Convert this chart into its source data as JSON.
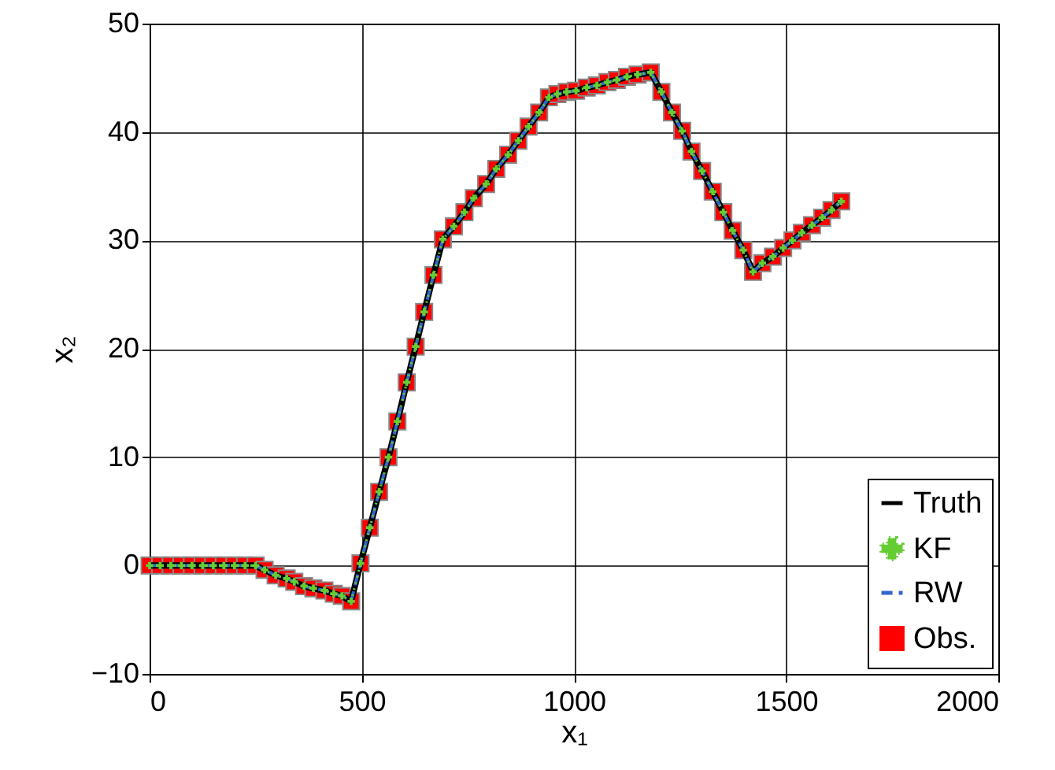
{
  "chart_data": {
    "type": "line",
    "xlabel": "x₁",
    "ylabel": "x₂",
    "x": [
      0,
      25,
      50,
      75,
      100,
      125,
      150,
      175,
      200,
      225,
      250,
      271,
      297,
      323,
      341,
      364,
      386,
      412,
      434,
      453,
      475,
      497,
      519,
      541,
      563,
      584,
      606,
      627,
      647,
      669,
      691,
      717,
      742,
      764,
      793,
      817,
      845,
      869,
      893,
      918,
      941,
      961,
      983,
      1005,
      1030,
      1054,
      1079,
      1101,
      1125,
      1150,
      1181,
      1206,
      1231,
      1255,
      1277,
      1302,
      1327,
      1352,
      1374,
      1399,
      1422,
      1444,
      1469,
      1493,
      1515,
      1537,
      1561,
      1585,
      1607,
      1630
    ],
    "series": [
      {
        "name": "Truth",
        "color": "#000000",
        "line_style": "solid",
        "marker": "none",
        "values": [
          0,
          0,
          0,
          0,
          0,
          0,
          0,
          0,
          0,
          0,
          0,
          -0.4,
          -0.9,
          -1.2,
          -1.5,
          -1.9,
          -2.1,
          -2.3,
          -2.6,
          -2.8,
          -3.3,
          0.2,
          3.5,
          6.8,
          10,
          13.3,
          16.9,
          20.2,
          23.4,
          26.8,
          30.1,
          31.3,
          32.6,
          33.9,
          35.2,
          36.6,
          37.9,
          39.2,
          40.5,
          41.8,
          43.2,
          43.5,
          43.7,
          43.8,
          44.1,
          44.3,
          44.6,
          44.8,
          45.1,
          45.3,
          45.5,
          43.7,
          41.8,
          40.1,
          38.2,
          36.4,
          34.5,
          32.6,
          30.9,
          29.1,
          27.1,
          27.9,
          28.5,
          29.3,
          30,
          30.7,
          31.4,
          32.1,
          32.8,
          33.6
        ]
      },
      {
        "name": "KF",
        "color": "#66cc33",
        "line_style": "dotted",
        "marker": "cross",
        "values": [
          0,
          0,
          0,
          0,
          0,
          0,
          0,
          0,
          0,
          0,
          0,
          -0.4,
          -0.9,
          -1.2,
          -1.5,
          -1.9,
          -2.1,
          -2.3,
          -2.6,
          -2.8,
          -3.3,
          0.2,
          3.5,
          6.8,
          10,
          13.3,
          16.9,
          20.2,
          23.4,
          26.8,
          30.1,
          31.3,
          32.6,
          33.9,
          35.2,
          36.6,
          37.9,
          39.2,
          40.5,
          41.8,
          43.2,
          43.5,
          43.7,
          43.8,
          44.1,
          44.3,
          44.6,
          44.8,
          45.1,
          45.3,
          45.5,
          43.7,
          41.8,
          40.1,
          38.2,
          36.4,
          34.5,
          32.6,
          30.9,
          29.1,
          27.1,
          27.9,
          28.5,
          29.3,
          30,
          30.7,
          31.4,
          32.1,
          32.8,
          33.6
        ]
      },
      {
        "name": "RW",
        "color": "#3366cc",
        "line_style": "dashed",
        "marker": "none",
        "values": [
          0,
          0,
          0,
          0,
          0,
          0,
          0,
          0,
          0,
          0,
          0,
          -0.4,
          -0.9,
          -1.2,
          -1.5,
          -1.9,
          -2.1,
          -2.3,
          -2.6,
          -2.8,
          -3.3,
          0.2,
          3.5,
          6.8,
          10,
          13.3,
          16.9,
          20.2,
          23.4,
          26.8,
          30.1,
          31.3,
          32.6,
          33.9,
          35.2,
          36.6,
          37.9,
          39.2,
          40.5,
          41.8,
          43.2,
          43.5,
          43.7,
          43.8,
          44.1,
          44.3,
          44.6,
          44.8,
          45.1,
          45.3,
          45.5,
          43.7,
          41.8,
          40.1,
          38.2,
          36.4,
          34.5,
          32.6,
          30.9,
          29.1,
          27.1,
          27.9,
          28.5,
          29.3,
          30,
          30.7,
          31.4,
          32.1,
          32.8,
          33.6
        ]
      },
      {
        "name": "Obs.",
        "type": "scatter",
        "color": "#ff0000",
        "marker": "square",
        "values": [
          0,
          0,
          0,
          0,
          0,
          0,
          0,
          0,
          0,
          0,
          0,
          -0.4,
          -0.9,
          -1.2,
          -1.5,
          -1.9,
          -2.1,
          -2.3,
          -2.6,
          -2.8,
          -3.3,
          0.2,
          3.5,
          6.8,
          10,
          13.3,
          16.9,
          20.2,
          23.4,
          26.8,
          30.1,
          31.3,
          32.6,
          33.9,
          35.2,
          36.6,
          37.9,
          39.2,
          40.5,
          41.8,
          43.2,
          43.5,
          43.7,
          43.8,
          44.1,
          44.3,
          44.6,
          44.8,
          45.1,
          45.3,
          45.5,
          43.7,
          41.8,
          40.1,
          38.2,
          36.4,
          34.5,
          32.6,
          30.9,
          29.1,
          27.1,
          27.9,
          28.5,
          29.3,
          30,
          30.7,
          31.4,
          32.1,
          32.8,
          33.6
        ]
      }
    ],
    "xlim": [
      0,
      2000
    ],
    "xticks": [
      0,
      500,
      1000,
      1500,
      2000
    ],
    "ylim": [
      -10,
      50
    ],
    "yticks": [
      {
        "value": -10,
        "label": "−10"
      },
      0,
      10,
      20,
      30,
      40,
      50
    ],
    "grid": true,
    "legend": "bottom right"
  }
}
